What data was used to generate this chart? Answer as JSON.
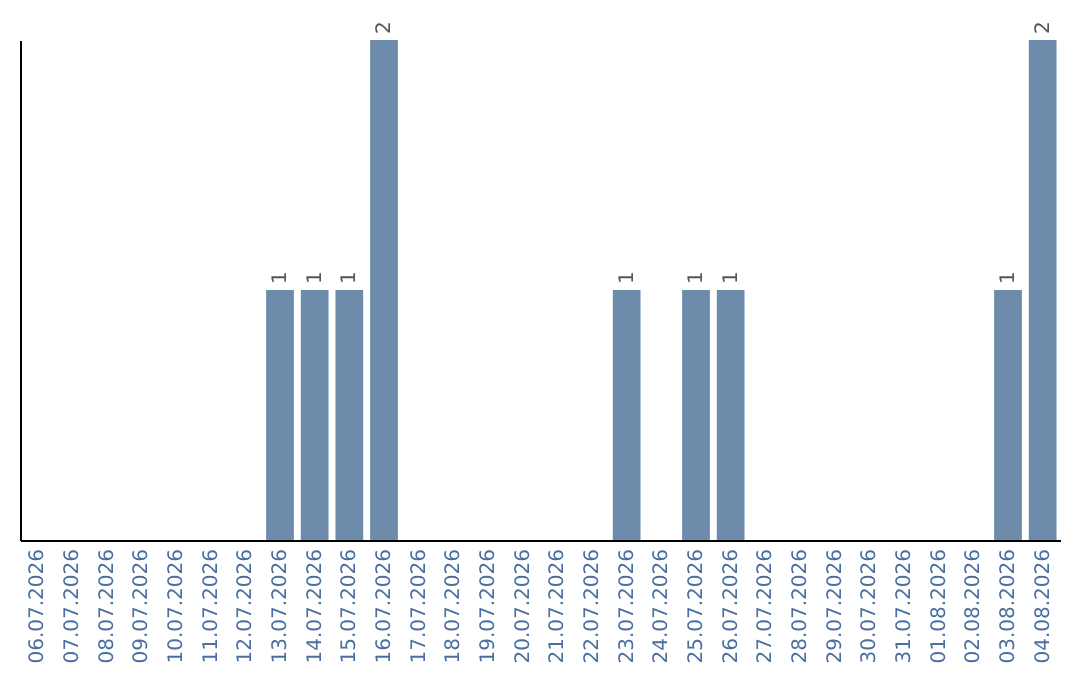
{
  "chart_data": {
    "type": "bar",
    "categories": [
      "06.07.2026",
      "07.07.2026",
      "08.07.2026",
      "09.07.2026",
      "10.07.2026",
      "11.07.2026",
      "12.07.2026",
      "13.07.2026",
      "14.07.2026",
      "15.07.2026",
      "16.07.2026",
      "17.07.2026",
      "18.07.2026",
      "19.07.2026",
      "20.07.2026",
      "21.07.2026",
      "22.07.2026",
      "23.07.2026",
      "24.07.2026",
      "25.07.2026",
      "26.07.2026",
      "27.07.2026",
      "28.07.2026",
      "29.07.2026",
      "30.07.2026",
      "31.07.2026",
      "01.08.2026",
      "02.08.2026",
      "03.08.2026",
      "04.08.2026"
    ],
    "values": [
      0,
      0,
      0,
      0,
      0,
      0,
      0,
      1,
      1,
      1,
      2,
      0,
      0,
      0,
      0,
      0,
      0,
      1,
      0,
      1,
      1,
      0,
      0,
      0,
      0,
      0,
      0,
      0,
      1,
      2
    ],
    "value_labels": [
      null,
      null,
      null,
      null,
      null,
      null,
      null,
      "1",
      "1",
      "1",
      "2",
      null,
      null,
      null,
      null,
      null,
      null,
      "1",
      null,
      "1",
      "1",
      null,
      null,
      null,
      null,
      null,
      null,
      null,
      "1",
      "2"
    ],
    "color": "#6d8cab",
    "ylim": [
      0,
      2
    ],
    "tick_labels": "x"
  }
}
